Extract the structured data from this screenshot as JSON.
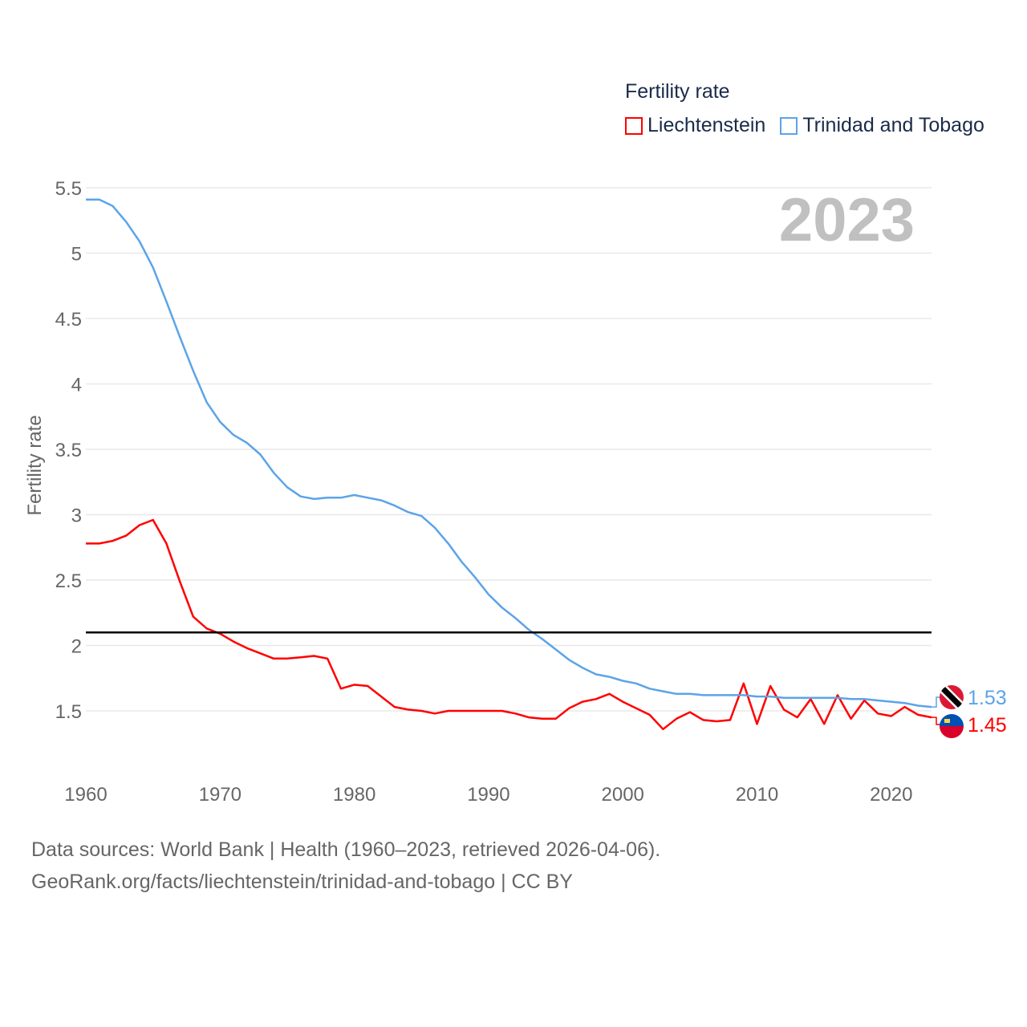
{
  "chart_data": {
    "type": "line",
    "title": "Fertility rate",
    "ylabel": "Fertility rate",
    "xlabel": "",
    "year_watermark": "2023",
    "xlim": [
      1960,
      2023
    ],
    "ylim": [
      1.25,
      5.55
    ],
    "x_ticks": [
      1960,
      1970,
      1980,
      1990,
      2000,
      2010,
      2020
    ],
    "y_ticks": [
      1.5,
      2,
      2.5,
      3,
      3.5,
      4,
      4.5,
      5,
      5.5
    ],
    "grid": true,
    "legend_placement": "top-right",
    "reference_line": {
      "value": 2.1,
      "color": "#000000"
    },
    "x": [
      1960,
      1961,
      1962,
      1963,
      1964,
      1965,
      1966,
      1967,
      1968,
      1969,
      1970,
      1971,
      1972,
      1973,
      1974,
      1975,
      1976,
      1977,
      1978,
      1979,
      1980,
      1981,
      1982,
      1983,
      1984,
      1985,
      1986,
      1987,
      1988,
      1989,
      1990,
      1991,
      1992,
      1993,
      1994,
      1995,
      1996,
      1997,
      1998,
      1999,
      2000,
      2001,
      2002,
      2003,
      2004,
      2005,
      2006,
      2007,
      2008,
      2009,
      2010,
      2011,
      2012,
      2013,
      2014,
      2015,
      2016,
      2017,
      2018,
      2019,
      2020,
      2021,
      2022,
      2023
    ],
    "series": [
      {
        "name": "Liechtenstein",
        "color": "#ff0000",
        "end_label": "1.45",
        "values": [
          2.78,
          2.78,
          2.8,
          2.84,
          2.92,
          2.96,
          2.78,
          2.49,
          2.22,
          2.13,
          2.09,
          2.03,
          1.98,
          1.94,
          1.9,
          1.9,
          1.91,
          1.92,
          1.9,
          1.67,
          1.7,
          1.69,
          1.61,
          1.53,
          1.51,
          1.5,
          1.48,
          1.5,
          1.5,
          1.5,
          1.5,
          1.5,
          1.48,
          1.45,
          1.44,
          1.44,
          1.52,
          1.57,
          1.59,
          1.63,
          1.57,
          1.52,
          1.47,
          1.36,
          1.44,
          1.49,
          1.43,
          1.42,
          1.43,
          1.71,
          1.4,
          1.69,
          1.51,
          1.45,
          1.59,
          1.4,
          1.62,
          1.44,
          1.58,
          1.48,
          1.46,
          1.53,
          1.47,
          1.45
        ]
      },
      {
        "name": "Trinidad and Tobago",
        "color": "#5ba4e8",
        "end_label": "1.53",
        "values": [
          5.41,
          5.41,
          5.36,
          5.24,
          5.09,
          4.89,
          4.63,
          4.36,
          4.1,
          3.86,
          3.71,
          3.61,
          3.55,
          3.46,
          3.32,
          3.21,
          3.14,
          3.12,
          3.13,
          3.13,
          3.15,
          3.13,
          3.11,
          3.07,
          3.02,
          2.99,
          2.9,
          2.78,
          2.64,
          2.52,
          2.39,
          2.29,
          2.21,
          2.12,
          2.05,
          1.97,
          1.89,
          1.83,
          1.78,
          1.76,
          1.73,
          1.71,
          1.67,
          1.65,
          1.63,
          1.63,
          1.62,
          1.62,
          1.62,
          1.62,
          1.61,
          1.61,
          1.6,
          1.6,
          1.6,
          1.6,
          1.6,
          1.59,
          1.59,
          1.58,
          1.57,
          1.56,
          1.54,
          1.53
        ]
      }
    ]
  },
  "footer": {
    "line1": "Data sources: World Bank | Health (1960–2023, retrieved 2026-04-06).",
    "line2": "GeoRank.org/facts/liechtenstein/trinidad-and-tobago | CC BY"
  }
}
